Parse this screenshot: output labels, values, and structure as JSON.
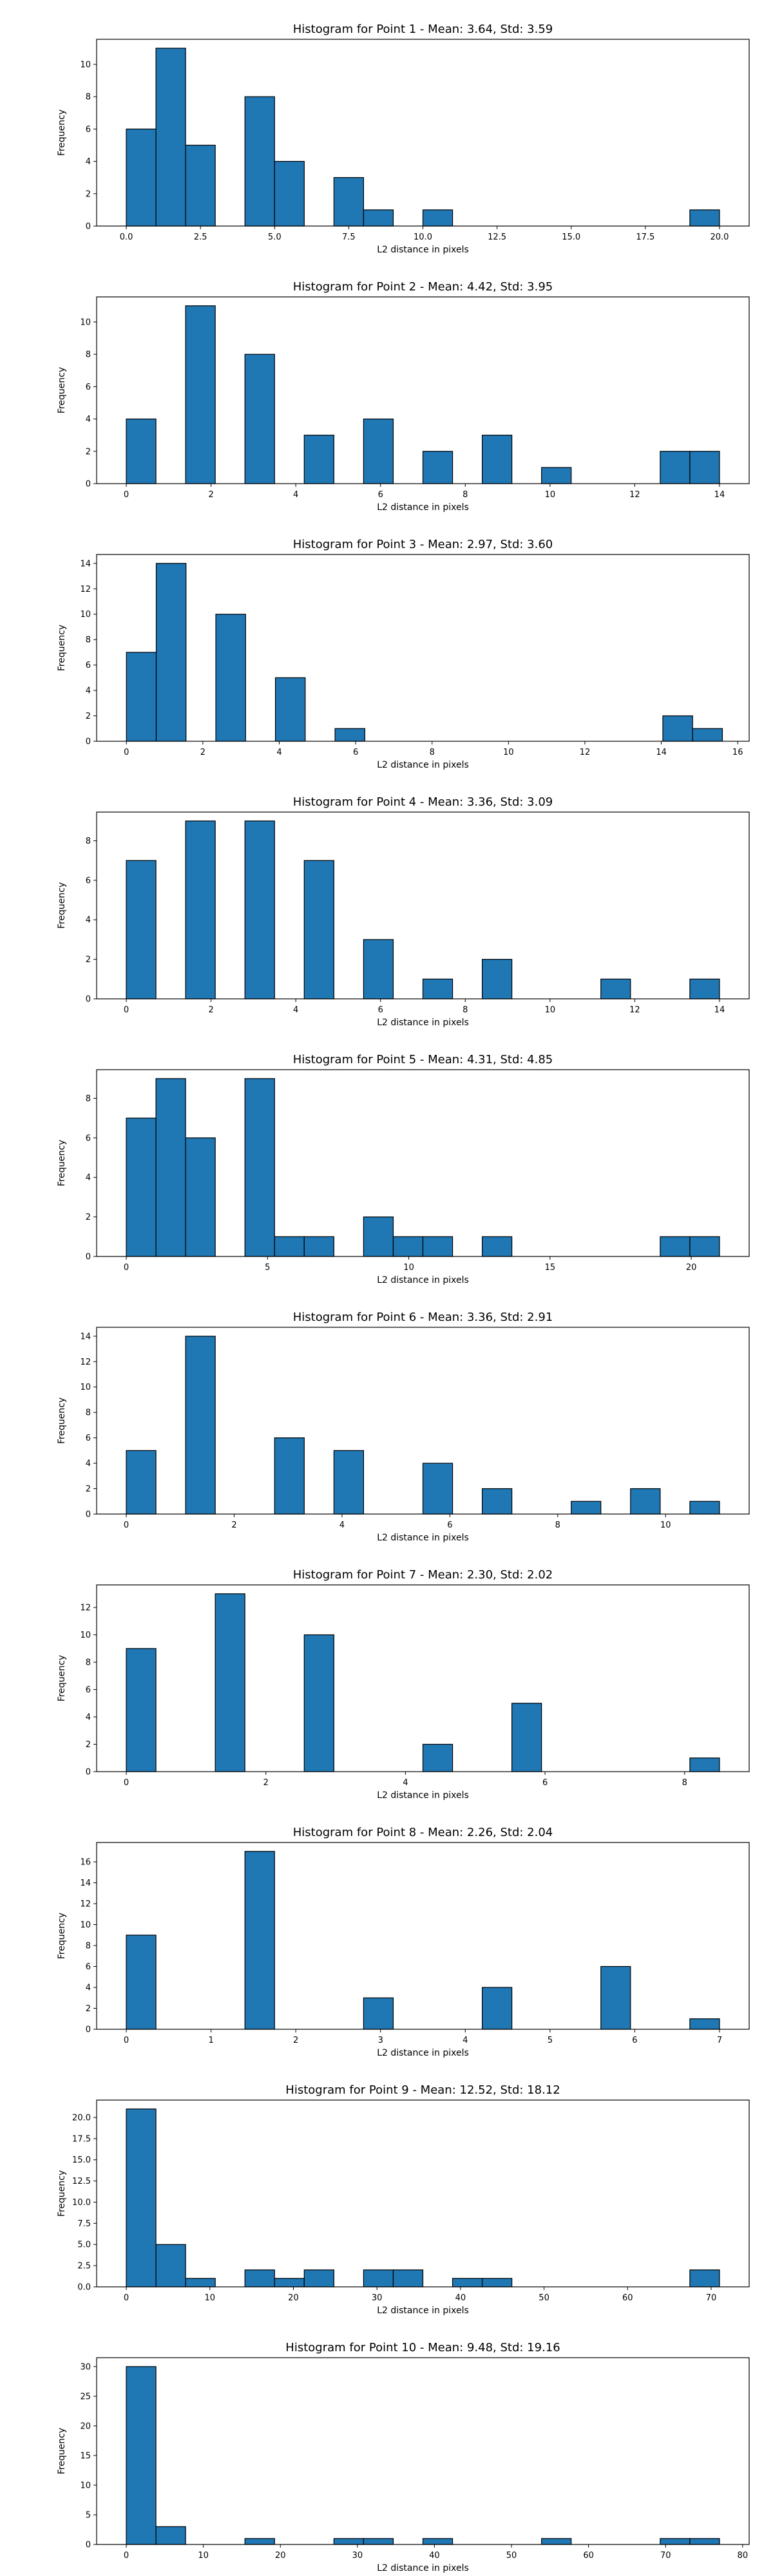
{
  "chart_data": [
    {
      "type": "bar",
      "title": "Histogram for Point 1 - Mean: 3.64, Std: 3.59",
      "xlabel": "L2 distance in pixels",
      "ylabel": "Frequency",
      "xlim": [
        -1.0,
        21.0
      ],
      "ylim": [
        0,
        11.55
      ],
      "xticks": [
        0.0,
        2.5,
        5.0,
        7.5,
        10.0,
        12.5,
        15.0,
        17.5,
        20.0
      ],
      "xticklabels": [
        "0.0",
        "2.5",
        "5.0",
        "7.5",
        "10.0",
        "12.5",
        "15.0",
        "17.5",
        "20.0"
      ],
      "yticks": [
        0,
        2,
        4,
        6,
        8,
        10
      ],
      "yticklabels": [
        "0",
        "2",
        "4",
        "6",
        "8",
        "10"
      ],
      "bins": [
        {
          "x0": 0.0,
          "x1": 1.0,
          "count": 6
        },
        {
          "x0": 1.0,
          "x1": 2.0,
          "count": 11
        },
        {
          "x0": 2.0,
          "x1": 3.0,
          "count": 5
        },
        {
          "x0": 4.0,
          "x1": 5.0,
          "count": 8
        },
        {
          "x0": 5.0,
          "x1": 6.0,
          "count": 4
        },
        {
          "x0": 7.0,
          "x1": 8.0,
          "count": 3
        },
        {
          "x0": 8.0,
          "x1": 9.0,
          "count": 1
        },
        {
          "x0": 10.0,
          "x1": 11.0,
          "count": 1
        },
        {
          "x0": 19.0,
          "x1": 20.0,
          "count": 1
        }
      ]
    },
    {
      "type": "bar",
      "title": "Histogram for Point 2 - Mean: 4.42, Std: 3.95",
      "xlabel": "L2 distance in pixels",
      "ylabel": "Frequency",
      "xlim": [
        -0.7,
        14.7
      ],
      "ylim": [
        0,
        11.55
      ],
      "xticks": [
        0,
        2,
        4,
        6,
        8,
        10,
        12,
        14
      ],
      "xticklabels": [
        "0",
        "2",
        "4",
        "6",
        "8",
        "10",
        "12",
        "14"
      ],
      "yticks": [
        0,
        2,
        4,
        6,
        8,
        10
      ],
      "yticklabels": [
        "0",
        "2",
        "4",
        "6",
        "8",
        "10"
      ],
      "bins": [
        {
          "x0": 0.0,
          "x1": 0.7,
          "count": 4
        },
        {
          "x0": 1.4,
          "x1": 2.1,
          "count": 11
        },
        {
          "x0": 2.8,
          "x1": 3.5,
          "count": 8
        },
        {
          "x0": 4.2,
          "x1": 4.9,
          "count": 3
        },
        {
          "x0": 5.6,
          "x1": 6.3,
          "count": 4
        },
        {
          "x0": 7.0,
          "x1": 7.7,
          "count": 2
        },
        {
          "x0": 8.4,
          "x1": 9.1,
          "count": 3
        },
        {
          "x0": 9.8,
          "x1": 10.5,
          "count": 1
        },
        {
          "x0": 12.6,
          "x1": 13.3,
          "count": 2
        },
        {
          "x0": 13.3,
          "x1": 14.0,
          "count": 2
        }
      ]
    },
    {
      "type": "bar",
      "title": "Histogram for Point 3 - Mean: 2.97, Std: 3.60",
      "xlabel": "L2 distance in pixels",
      "ylabel": "Frequency",
      "xlim": [
        -0.78,
        16.3
      ],
      "ylim": [
        0,
        14.7
      ],
      "xticks": [
        0,
        2,
        4,
        6,
        8,
        10,
        12,
        14,
        16
      ],
      "xticklabels": [
        "0",
        "2",
        "4",
        "6",
        "8",
        "10",
        "12",
        "14",
        "16"
      ],
      "yticks": [
        0,
        2,
        4,
        6,
        8,
        10,
        12,
        14
      ],
      "yticklabels": [
        "0",
        "2",
        "4",
        "6",
        "8",
        "10",
        "12",
        "14"
      ],
      "bins": [
        {
          "x0": 0.0,
          "x1": 0.78,
          "count": 7
        },
        {
          "x0": 0.78,
          "x1": 1.56,
          "count": 14
        },
        {
          "x0": 2.34,
          "x1": 3.12,
          "count": 10
        },
        {
          "x0": 3.9,
          "x1": 4.68,
          "count": 5
        },
        {
          "x0": 5.46,
          "x1": 6.24,
          "count": 1
        },
        {
          "x0": 14.04,
          "x1": 14.82,
          "count": 2
        },
        {
          "x0": 14.82,
          "x1": 15.6,
          "count": 1
        }
      ]
    },
    {
      "type": "bar",
      "title": "Histogram for Point 4 - Mean: 3.36, Std: 3.09",
      "xlabel": "L2 distance in pixels",
      "ylabel": "Frequency",
      "xlim": [
        -0.7,
        14.7
      ],
      "ylim": [
        0,
        9.45
      ],
      "xticks": [
        0,
        2,
        4,
        6,
        8,
        10,
        12,
        14
      ],
      "xticklabels": [
        "0",
        "2",
        "4",
        "6",
        "8",
        "10",
        "12",
        "14"
      ],
      "yticks": [
        0,
        2,
        4,
        6,
        8
      ],
      "yticklabels": [
        "0",
        "2",
        "4",
        "6",
        "8"
      ],
      "bins": [
        {
          "x0": 0.0,
          "x1": 0.7,
          "count": 7
        },
        {
          "x0": 1.4,
          "x1": 2.1,
          "count": 9
        },
        {
          "x0": 2.8,
          "x1": 3.5,
          "count": 9
        },
        {
          "x0": 4.2,
          "x1": 4.9,
          "count": 7
        },
        {
          "x0": 5.6,
          "x1": 6.3,
          "count": 3
        },
        {
          "x0": 7.0,
          "x1": 7.7,
          "count": 1
        },
        {
          "x0": 8.4,
          "x1": 9.1,
          "count": 2
        },
        {
          "x0": 11.2,
          "x1": 11.9,
          "count": 1
        },
        {
          "x0": 13.3,
          "x1": 14.0,
          "count": 1
        }
      ]
    },
    {
      "type": "bar",
      "title": "Histogram for Point 5 - Mean: 4.31, Std: 4.85",
      "xlabel": "L2 distance in pixels",
      "ylabel": "Frequency",
      "xlim": [
        -1.05,
        22.05
      ],
      "ylim": [
        0,
        9.45
      ],
      "xticks": [
        0,
        5,
        10,
        15,
        20
      ],
      "xticklabels": [
        "0",
        "5",
        "10",
        "15",
        "20"
      ],
      "yticks": [
        0,
        2,
        4,
        6,
        8
      ],
      "yticklabels": [
        "0",
        "2",
        "4",
        "6",
        "8"
      ],
      "bins": [
        {
          "x0": 0.0,
          "x1": 1.05,
          "count": 7
        },
        {
          "x0": 1.05,
          "x1": 2.1,
          "count": 9
        },
        {
          "x0": 2.1,
          "x1": 3.15,
          "count": 6
        },
        {
          "x0": 4.2,
          "x1": 5.25,
          "count": 9
        },
        {
          "x0": 5.25,
          "x1": 6.3,
          "count": 1
        },
        {
          "x0": 6.3,
          "x1": 7.35,
          "count": 1
        },
        {
          "x0": 8.4,
          "x1": 9.45,
          "count": 2
        },
        {
          "x0": 9.45,
          "x1": 10.5,
          "count": 1
        },
        {
          "x0": 10.5,
          "x1": 11.55,
          "count": 1
        },
        {
          "x0": 12.6,
          "x1": 13.65,
          "count": 1
        },
        {
          "x0": 18.9,
          "x1": 19.95,
          "count": 1
        },
        {
          "x0": 19.95,
          "x1": 21.0,
          "count": 1
        }
      ]
    },
    {
      "type": "bar",
      "title": "Histogram for Point 6 - Mean: 3.36, Std: 2.91",
      "xlabel": "L2 distance in pixels",
      "ylabel": "Frequency",
      "xlim": [
        -0.55,
        11.55
      ],
      "ylim": [
        0,
        14.7
      ],
      "xticks": [
        0,
        2,
        4,
        6,
        8,
        10
      ],
      "xticklabels": [
        "0",
        "2",
        "4",
        "6",
        "8",
        "10"
      ],
      "yticks": [
        0,
        2,
        4,
        6,
        8,
        10,
        12,
        14
      ],
      "yticklabels": [
        "0",
        "2",
        "4",
        "6",
        "8",
        "10",
        "12",
        "14"
      ],
      "bins": [
        {
          "x0": 0.0,
          "x1": 0.55,
          "count": 5
        },
        {
          "x0": 1.1,
          "x1": 1.65,
          "count": 14
        },
        {
          "x0": 2.75,
          "x1": 3.3,
          "count": 6
        },
        {
          "x0": 3.85,
          "x1": 4.4,
          "count": 5
        },
        {
          "x0": 5.5,
          "x1": 6.05,
          "count": 4
        },
        {
          "x0": 6.6,
          "x1": 7.15,
          "count": 2
        },
        {
          "x0": 8.25,
          "x1": 8.8,
          "count": 1
        },
        {
          "x0": 9.35,
          "x1": 9.9,
          "count": 2
        },
        {
          "x0": 10.45,
          "x1": 11.0,
          "count": 1
        }
      ]
    },
    {
      "type": "bar",
      "title": "Histogram for Point 7 - Mean: 2.30, Std: 2.02",
      "xlabel": "L2 distance in pixels",
      "ylabel": "Frequency",
      "xlim": [
        -0.425,
        8.925
      ],
      "ylim": [
        0,
        13.65
      ],
      "xticks": [
        0,
        2,
        4,
        6,
        8
      ],
      "xticklabels": [
        "0",
        "2",
        "4",
        "6",
        "8"
      ],
      "yticks": [
        0,
        2,
        4,
        6,
        8,
        10,
        12
      ],
      "yticklabels": [
        "0",
        "2",
        "4",
        "6",
        "8",
        "10",
        "12"
      ],
      "bins": [
        {
          "x0": 0.0,
          "x1": 0.425,
          "count": 9
        },
        {
          "x0": 1.275,
          "x1": 1.7,
          "count": 13
        },
        {
          "x0": 2.55,
          "x1": 2.975,
          "count": 10
        },
        {
          "x0": 4.25,
          "x1": 4.675,
          "count": 2
        },
        {
          "x0": 5.525,
          "x1": 5.95,
          "count": 5
        },
        {
          "x0": 8.075,
          "x1": 8.5,
          "count": 1
        }
      ]
    },
    {
      "type": "bar",
      "title": "Histogram for Point 8 - Mean: 2.26, Std: 2.04",
      "xlabel": "L2 distance in pixels",
      "ylabel": "Frequency",
      "xlim": [
        -0.35,
        7.35
      ],
      "ylim": [
        0,
        17.85
      ],
      "xticks": [
        0,
        1,
        2,
        3,
        4,
        5,
        6,
        7
      ],
      "xticklabels": [
        "0",
        "1",
        "2",
        "3",
        "4",
        "5",
        "6",
        "7"
      ],
      "yticks": [
        0,
        2,
        4,
        6,
        8,
        10,
        12,
        14,
        16
      ],
      "yticklabels": [
        "0",
        "2",
        "4",
        "6",
        "8",
        "10",
        "12",
        "14",
        "16"
      ],
      "bins": [
        {
          "x0": 0.0,
          "x1": 0.35,
          "count": 9
        },
        {
          "x0": 1.4,
          "x1": 1.75,
          "count": 17
        },
        {
          "x0": 2.8,
          "x1": 3.15,
          "count": 3
        },
        {
          "x0": 4.2,
          "x1": 4.55,
          "count": 4
        },
        {
          "x0": 5.6,
          "x1": 5.95,
          "count": 6
        },
        {
          "x0": 6.65,
          "x1": 7.0,
          "count": 1
        }
      ]
    },
    {
      "type": "bar",
      "title": "Histogram for Point 9 - Mean: 12.52, Std: 18.12",
      "xlabel": "L2 distance in pixels",
      "ylabel": "Frequency",
      "xlim": [
        -3.55,
        74.55
      ],
      "ylim": [
        0,
        22.05
      ],
      "xticks": [
        0,
        10,
        20,
        30,
        40,
        50,
        60,
        70
      ],
      "xticklabels": [
        "0",
        "10",
        "20",
        "30",
        "40",
        "50",
        "60",
        "70"
      ],
      "yticks": [
        0.0,
        2.5,
        5.0,
        7.5,
        10.0,
        12.5,
        15.0,
        17.5,
        20.0
      ],
      "yticklabels": [
        "0.0",
        "2.5",
        "5.0",
        "7.5",
        "10.0",
        "12.5",
        "15.0",
        "17.5",
        "20.0"
      ],
      "bins": [
        {
          "x0": 0.0,
          "x1": 3.55,
          "count": 21
        },
        {
          "x0": 3.55,
          "x1": 7.1,
          "count": 5
        },
        {
          "x0": 7.1,
          "x1": 10.65,
          "count": 1
        },
        {
          "x0": 14.2,
          "x1": 17.75,
          "count": 2
        },
        {
          "x0": 17.75,
          "x1": 21.3,
          "count": 1
        },
        {
          "x0": 21.3,
          "x1": 24.85,
          "count": 2
        },
        {
          "x0": 28.4,
          "x1": 31.95,
          "count": 2
        },
        {
          "x0": 31.95,
          "x1": 35.5,
          "count": 2
        },
        {
          "x0": 39.05,
          "x1": 42.6,
          "count": 1
        },
        {
          "x0": 42.6,
          "x1": 46.15,
          "count": 1
        },
        {
          "x0": 67.45,
          "x1": 71.0,
          "count": 2
        }
      ]
    },
    {
      "type": "bar",
      "title": "Histogram for Point 10 - Mean: 9.48, Std: 19.16",
      "xlabel": "L2 distance in pixels",
      "ylabel": "Frequency",
      "xlim": [
        -3.85,
        80.85
      ],
      "ylim": [
        0,
        31.5
      ],
      "xticks": [
        0,
        10,
        20,
        30,
        40,
        50,
        60,
        70,
        80
      ],
      "xticklabels": [
        "0",
        "10",
        "20",
        "30",
        "40",
        "50",
        "60",
        "70",
        "80"
      ],
      "yticks": [
        0,
        5,
        10,
        15,
        20,
        25,
        30
      ],
      "yticklabels": [
        "0",
        "5",
        "10",
        "15",
        "20",
        "25",
        "30"
      ],
      "bins": [
        {
          "x0": 0.0,
          "x1": 3.85,
          "count": 30
        },
        {
          "x0": 3.85,
          "x1": 7.7,
          "count": 3
        },
        {
          "x0": 15.4,
          "x1": 19.25,
          "count": 1
        },
        {
          "x0": 26.95,
          "x1": 30.8,
          "count": 1
        },
        {
          "x0": 30.8,
          "x1": 34.65,
          "count": 1
        },
        {
          "x0": 38.5,
          "x1": 42.35,
          "count": 1
        },
        {
          "x0": 53.9,
          "x1": 57.75,
          "count": 1
        },
        {
          "x0": 69.3,
          "x1": 73.15,
          "count": 1
        },
        {
          "x0": 73.15,
          "x1": 77.0,
          "count": 1
        }
      ]
    }
  ],
  "colors": {
    "bar_fill": "#1f77b4",
    "bar_edge": "#000000"
  }
}
